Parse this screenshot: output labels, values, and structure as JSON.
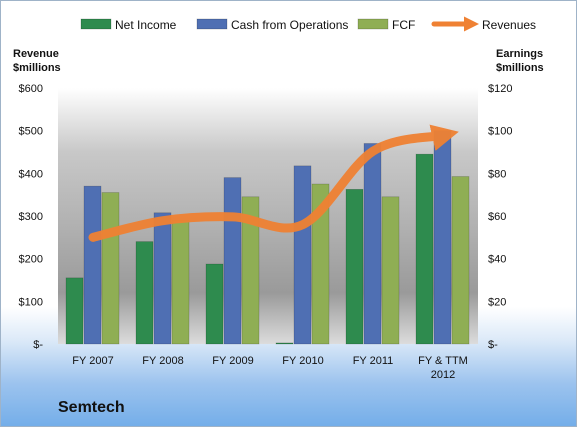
{
  "chart_data": {
    "type": "bar",
    "title": "Semtech",
    "categories": [
      [
        "FY 2007"
      ],
      [
        "FY 2008"
      ],
      [
        "FY 2009"
      ],
      [
        "FY 2010"
      ],
      [
        "FY 2011"
      ],
      [
        "FY & TTM",
        "2012"
      ]
    ],
    "series": [
      {
        "name": "Net Income",
        "axis": "right",
        "values": [
          31,
          48,
          37.5,
          0.5,
          72.5,
          89
        ],
        "color": "#2e8b4e"
      },
      {
        "name": "Cash from Operations",
        "axis": "right",
        "values": [
          74,
          61.5,
          78,
          83.5,
          94,
          100
        ],
        "color": "#4f6fb3"
      },
      {
        "name": "FCF",
        "axis": "right",
        "values": [
          71,
          58,
          69,
          75,
          69,
          78.5
        ],
        "color": "#8fae54"
      },
      {
        "name": "Revenues",
        "axis": "left",
        "type": "line",
        "values": [
          250,
          289,
          298,
          280,
          452,
          489
        ],
        "color": "#ef8133"
      }
    ],
    "left_axis": {
      "label": [
        "Revenue",
        "$millions"
      ],
      "ylim": [
        0,
        600
      ],
      "ticks": [
        0,
        100,
        200,
        300,
        400,
        500,
        600
      ],
      "tick_labels": [
        "$-",
        "$100",
        "$200",
        "$300",
        "$400",
        "$500",
        "$600"
      ]
    },
    "right_axis": {
      "label": [
        "Earnings",
        "$millions"
      ],
      "ylim": [
        0,
        120
      ],
      "ticks": [
        0,
        20,
        40,
        60,
        80,
        100,
        120
      ],
      "tick_labels": [
        "$-",
        "$20",
        "$40",
        "$60",
        "$80",
        "$100",
        "$120"
      ]
    },
    "legend_position": "top",
    "grid": false
  }
}
